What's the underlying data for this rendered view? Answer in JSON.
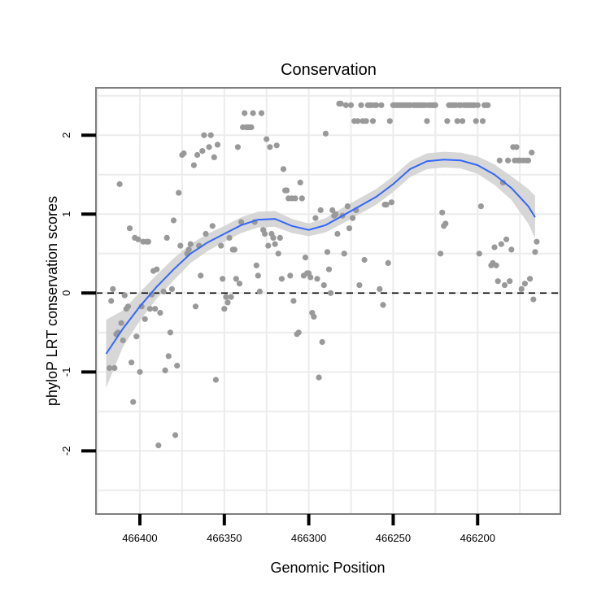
{
  "chart_data": {
    "type": "scatter",
    "title": "Conservation",
    "xlabel": "Genomic Position",
    "ylabel": "phyloP LRT conservation scores",
    "x_axis_reversed": true,
    "xlim": [
      466426,
      466151
    ],
    "ylim": [
      -2.8,
      2.6
    ],
    "xticks": [
      466400,
      466350,
      466300,
      466250,
      466200
    ],
    "yticks": [
      -2,
      -1,
      0,
      1,
      2
    ],
    "grid": true,
    "reference_line": {
      "y": 0,
      "style": "dashed",
      "color": "#000000"
    },
    "colors": {
      "points": "#999999",
      "smooth": "#3366FF",
      "band": "#D3D3D3",
      "frame": "#7F7F7F"
    },
    "series": [
      {
        "kind": "points",
        "points": [
          [
            466418,
            -0.95
          ],
          [
            466417,
            -0.1
          ],
          [
            466416,
            0.05
          ],
          [
            466415,
            -0.95
          ],
          [
            466414,
            -0.52
          ],
          [
            466413,
            -0.5
          ],
          [
            466412,
            1.38
          ],
          [
            466411,
            -0.38
          ],
          [
            466410,
            -0.6
          ],
          [
            466409,
            -0.03
          ],
          [
            466408,
            -0.2
          ],
          [
            466407,
            -0.17
          ],
          [
            466406,
            0.82
          ],
          [
            466405,
            -0.88
          ],
          [
            466404,
            -1.38
          ],
          [
            466403,
            0.7
          ],
          [
            466402,
            -0.55
          ],
          [
            466401,
            0.68
          ],
          [
            466400,
            -1.0
          ],
          [
            466399,
            -0.17
          ],
          [
            466398,
            0.65
          ],
          [
            466397,
            -0.33
          ],
          [
            466396,
            0.65
          ],
          [
            466395,
            0.65
          ],
          [
            466394,
            -0.2
          ],
          [
            466393,
            -0.02
          ],
          [
            466392,
            0.28
          ],
          [
            466391,
            -0.2
          ],
          [
            466390,
            0.3
          ],
          [
            466389,
            -1.93
          ],
          [
            466388,
            -0.25
          ],
          [
            466386,
            0.02
          ],
          [
            466385,
            -0.98
          ],
          [
            466384,
            0.7
          ],
          [
            466383,
            -0.8
          ],
          [
            466382,
            -0.5
          ],
          [
            466381,
            0.05
          ],
          [
            466380,
            0.92
          ],
          [
            466379,
            -1.8
          ],
          [
            466378,
            -0.92
          ],
          [
            466377,
            1.27
          ],
          [
            466376,
            0.6
          ],
          [
            466375,
            1.75
          ],
          [
            466374,
            1.77
          ],
          [
            466372,
            0.5
          ],
          [
            466371,
            0.55
          ],
          [
            466370,
            0.62
          ],
          [
            466368,
            1.62
          ],
          [
            466367,
            -0.17
          ],
          [
            466366,
            1.75
          ],
          [
            466365,
            0.6
          ],
          [
            466364,
            0.22
          ],
          [
            466363,
            1.8
          ],
          [
            466362,
            2.0
          ],
          [
            466361,
            0.75
          ],
          [
            466359,
            1.85
          ],
          [
            466358,
            2.0
          ],
          [
            466357,
            0.85
          ],
          [
            466356,
            1.72
          ],
          [
            466355,
            -1.1
          ],
          [
            466354,
            1.88
          ],
          [
            466352,
            0.6
          ],
          [
            466351,
            0.18
          ],
          [
            466350,
            -0.2
          ],
          [
            466349,
            -0.05
          ],
          [
            466348,
            -0.12
          ],
          [
            466347,
            0.7
          ],
          [
            466346,
            -0.05
          ],
          [
            466345,
            0.55
          ],
          [
            466344,
            0.55
          ],
          [
            466343,
            0.18
          ],
          [
            466342,
            1.85
          ],
          [
            466341,
            0.12
          ],
          [
            466340,
            0.9
          ],
          [
            466339,
            2.1
          ],
          [
            466338,
            2.28
          ],
          [
            466337,
            2.1
          ],
          [
            466336,
            2.1
          ],
          [
            466335,
            2.1
          ],
          [
            466334,
            2.1
          ],
          [
            466333,
            2.28
          ],
          [
            466332,
            0.9
          ],
          [
            466331,
            0.35
          ],
          [
            466330,
            0.22
          ],
          [
            466329,
            0.02
          ],
          [
            466328,
            2.28
          ],
          [
            466327,
            0.8
          ],
          [
            466326,
            0.75
          ],
          [
            466325,
            1.95
          ],
          [
            466324,
            0.6
          ],
          [
            466323,
            1.85
          ],
          [
            466322,
            0.75
          ],
          [
            466321,
            0.7
          ],
          [
            466320,
            0.62
          ],
          [
            466319,
            1.87
          ],
          [
            466318,
            0.5
          ],
          [
            466317,
            0.7
          ],
          [
            466316,
            0.18
          ],
          [
            466315,
            1.57
          ],
          [
            466314,
            1.3
          ],
          [
            466313,
            1.3
          ],
          [
            466312,
            1.2
          ],
          [
            466311,
            0.22
          ],
          [
            466310,
            1.2
          ],
          [
            466309,
            -0.1
          ],
          [
            466308,
            1.2
          ],
          [
            466307,
            -0.52
          ],
          [
            466306,
            -0.5
          ],
          [
            466305,
            1.4
          ],
          [
            466304,
            1.2
          ],
          [
            466303,
            0.22
          ],
          [
            466302,
            0.45
          ],
          [
            466301,
            0.25
          ],
          [
            466300,
            0.25
          ],
          [
            466299,
            0.2
          ],
          [
            466298,
            -0.25
          ],
          [
            466297,
            -0.3
          ],
          [
            466296,
            0.95
          ],
          [
            466295,
            0.18
          ],
          [
            466294,
            -1.07
          ],
          [
            466293,
            1.05
          ],
          [
            466292,
            -0.62
          ],
          [
            466291,
            0.1
          ],
          [
            466290,
            2.02
          ],
          [
            466289,
            0.52
          ],
          [
            466288,
            0.3
          ],
          [
            466287,
            0.0
          ],
          [
            466286,
            1.05
          ],
          [
            466285,
            0.98
          ],
          [
            466284,
            1.0
          ],
          [
            466283,
            0.75
          ],
          [
            466282,
            2.4
          ],
          [
            466281,
            2.4
          ],
          [
            466280,
            0.98
          ],
          [
            466279,
            0.5
          ],
          [
            466278,
            2.38
          ],
          [
            466277,
            1.1
          ],
          [
            466276,
            0.82
          ],
          [
            466275,
            2.38
          ],
          [
            466274,
            0.95
          ],
          [
            466273,
            2.18
          ],
          [
            466272,
            1.05
          ],
          [
            466271,
            2.18
          ],
          [
            466270,
            0.1
          ],
          [
            466269,
            2.38
          ],
          [
            466268,
            2.18
          ],
          [
            466267,
            0.42
          ],
          [
            466266,
            2.18
          ],
          [
            466265,
            2.38
          ],
          [
            466264,
            2.38
          ],
          [
            466263,
            2.38
          ],
          [
            466262,
            2.18
          ],
          [
            466261,
            2.38
          ],
          [
            466260,
            2.38
          ],
          [
            466258,
            0.05
          ],
          [
            466257,
            2.38
          ],
          [
            466256,
            -0.15
          ],
          [
            466255,
            1.12
          ],
          [
            466254,
            1.12
          ],
          [
            466253,
            0.38
          ],
          [
            466252,
            2.18
          ],
          [
            466251,
            1.15
          ],
          [
            466250,
            2.38
          ],
          [
            466249,
            2.38
          ],
          [
            466248,
            2.38
          ],
          [
            466247,
            2.38
          ],
          [
            466246,
            2.38
          ],
          [
            466245,
            2.38
          ],
          [
            466244,
            2.38
          ],
          [
            466243,
            2.38
          ],
          [
            466242,
            2.38
          ],
          [
            466241,
            2.38
          ],
          [
            466240,
            2.38
          ],
          [
            466238,
            2.38
          ],
          [
            466237,
            2.38
          ],
          [
            466236,
            2.38
          ],
          [
            466235,
            2.38
          ],
          [
            466234,
            2.38
          ],
          [
            466233,
            2.38
          ],
          [
            466232,
            2.38
          ],
          [
            466231,
            2.38
          ],
          [
            466230,
            2.18
          ],
          [
            466229,
            2.38
          ],
          [
            466228,
            2.38
          ],
          [
            466227,
            2.38
          ],
          [
            466226,
            2.38
          ],
          [
            466225,
            2.38
          ],
          [
            466222,
            0.5
          ],
          [
            466221,
            1.02
          ],
          [
            466220,
            0.85
          ],
          [
            466219,
            0.88
          ],
          [
            466218,
            2.18
          ],
          [
            466217,
            2.38
          ],
          [
            466216,
            2.38
          ],
          [
            466215,
            2.38
          ],
          [
            466214,
            2.38
          ],
          [
            466213,
            2.38
          ],
          [
            466212,
            2.18
          ],
          [
            466211,
            2.38
          ],
          [
            466210,
            2.38
          ],
          [
            466209,
            2.18
          ],
          [
            466208,
            2.38
          ],
          [
            466207,
            2.38
          ],
          [
            466206,
            2.38
          ],
          [
            466205,
            2.38
          ],
          [
            466204,
            2.38
          ],
          [
            466203,
            2.38
          ],
          [
            466202,
            2.38
          ],
          [
            466201,
            2.18
          ],
          [
            466200,
            2.38
          ],
          [
            466199,
            0.5
          ],
          [
            466198,
            1.1
          ],
          [
            466197,
            2.18
          ],
          [
            466196,
            2.38
          ],
          [
            466195,
            2.38
          ],
          [
            466194,
            2.38
          ],
          [
            466192,
            0.35
          ],
          [
            466191,
            0.38
          ],
          [
            466190,
            0.58
          ],
          [
            466189,
            0.35
          ],
          [
            466188,
            0.15
          ],
          [
            466187,
            1.68
          ],
          [
            466186,
            0.62
          ],
          [
            466185,
            1.4
          ],
          [
            466184,
            0.1
          ],
          [
            466183,
            0.68
          ],
          [
            466182,
            1.68
          ],
          [
            466181,
            0.15
          ],
          [
            466180,
            0.55
          ],
          [
            466179,
            1.85
          ],
          [
            466178,
            1.68
          ],
          [
            466177,
            1.85
          ],
          [
            466176,
            1.68
          ],
          [
            466175,
            1.68
          ],
          [
            466174,
            0.05
          ],
          [
            466173,
            1.68
          ],
          [
            466172,
            0.12
          ],
          [
            466171,
            1.68
          ],
          [
            466170,
            1.68
          ],
          [
            466169,
            0.18
          ],
          [
            466168,
            1.78
          ],
          [
            466167,
            -0.08
          ],
          [
            466166,
            0.52
          ],
          [
            466165,
            0.65
          ]
        ]
      },
      {
        "kind": "smooth",
        "x": [
          466420,
          466410,
          466400,
          466390,
          466380,
          466370,
          466360,
          466350,
          466340,
          466330,
          466320,
          466310,
          466300,
          466290,
          466280,
          466270,
          466260,
          466250,
          466240,
          466230,
          466220,
          466210,
          466200,
          466190,
          466180,
          466170,
          466166
        ],
        "y": [
          -0.77,
          -0.45,
          -0.17,
          0.08,
          0.3,
          0.5,
          0.64,
          0.75,
          0.86,
          0.93,
          0.94,
          0.85,
          0.8,
          0.86,
          0.98,
          1.1,
          1.22,
          1.38,
          1.57,
          1.67,
          1.69,
          1.68,
          1.62,
          1.5,
          1.33,
          1.1,
          0.96
        ],
        "se_lower": [
          -1.2,
          -0.68,
          -0.35,
          -0.07,
          0.16,
          0.38,
          0.53,
          0.65,
          0.76,
          0.83,
          0.84,
          0.76,
          0.72,
          0.77,
          0.88,
          1.0,
          1.12,
          1.28,
          1.47,
          1.57,
          1.59,
          1.58,
          1.51,
          1.37,
          1.18,
          0.88,
          0.69
        ],
        "se_upper": [
          -0.34,
          -0.22,
          0.01,
          0.23,
          0.44,
          0.62,
          0.75,
          0.85,
          0.96,
          1.03,
          1.04,
          0.94,
          0.88,
          0.95,
          1.08,
          1.2,
          1.32,
          1.48,
          1.67,
          1.77,
          1.79,
          1.78,
          1.73,
          1.63,
          1.48,
          1.32,
          1.23
        ]
      }
    ]
  }
}
